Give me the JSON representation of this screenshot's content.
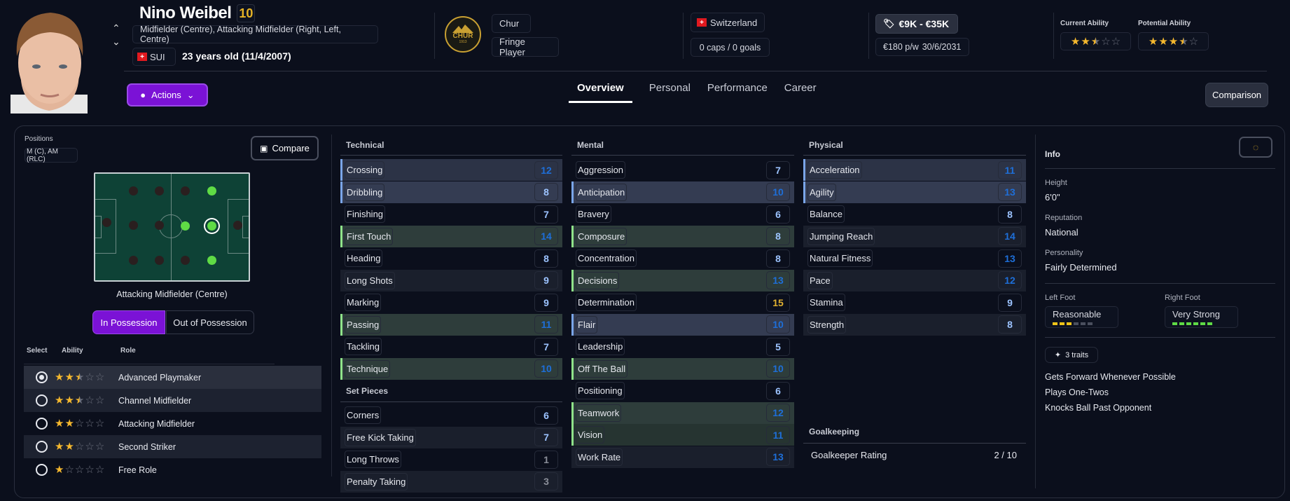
{
  "player": {
    "name": "Nino Weibel",
    "number": "10",
    "positions_full": "Midfielder (Centre), Attacking Midfielder (Right, Left, Centre)",
    "nationality_code": "SUI",
    "age": "23 years old (11/4/2007)"
  },
  "club": {
    "logo_text": "CHUR",
    "logo_year": "1913",
    "name": "Chur",
    "squad_status": "Fringe Player"
  },
  "international": {
    "country": "Switzerland",
    "caps": "0 caps / 0 goals"
  },
  "contract": {
    "value": "€9K - €35K",
    "wage": "€180 p/w",
    "expires": "30/6/2031"
  },
  "ability": {
    "current_label": "Current Ability",
    "current_stars": 2.5,
    "potential_label": "Potential Ability",
    "potential_stars": 3.5
  },
  "nav": {
    "actions": "Actions",
    "tabs": [
      "Overview",
      "Personal",
      "Performance",
      "Career"
    ],
    "active_tab": "Overview",
    "comparison": "Comparison"
  },
  "positions": {
    "label": "Positions",
    "short": "M (C), AM (RLC)",
    "compare": "Compare",
    "selected_position": "Attacking Midfielder (Centre)",
    "toggle": [
      "In Possession",
      "Out of Possession"
    ],
    "toggle_active": "In Possession",
    "columns": [
      "Select",
      "Ability",
      "Role"
    ],
    "roles": [
      {
        "name": "Advanced Playmaker",
        "stars": 2.5,
        "selected": true
      },
      {
        "name": "Channel Midfielder",
        "stars": 2.5,
        "selected": false
      },
      {
        "name": "Attacking Midfielder",
        "stars": 2,
        "selected": false
      },
      {
        "name": "Second Striker",
        "stars": 2,
        "selected": false
      },
      {
        "name": "Free Role",
        "stars": 1,
        "selected": false
      }
    ]
  },
  "technical": {
    "title": "Technical",
    "items": [
      {
        "name": "Crossing",
        "value": 12,
        "hl": "blue"
      },
      {
        "name": "Dribbling",
        "value": 8,
        "hl": "blue2"
      },
      {
        "name": "Finishing",
        "value": 7,
        "hl": ""
      },
      {
        "name": "First Touch",
        "value": 14,
        "hl": "green"
      },
      {
        "name": "Heading",
        "value": 8,
        "hl": ""
      },
      {
        "name": "Long Shots",
        "value": 9,
        "hl": "alt"
      },
      {
        "name": "Marking",
        "value": 9,
        "hl": ""
      },
      {
        "name": "Passing",
        "value": 11,
        "hl": "green"
      },
      {
        "name": "Tackling",
        "value": 7,
        "hl": ""
      },
      {
        "name": "Technique",
        "value": 10,
        "hl": "green"
      }
    ]
  },
  "set_pieces": {
    "title": "Set Pieces",
    "items": [
      {
        "name": "Corners",
        "value": 6,
        "hl": ""
      },
      {
        "name": "Free Kick Taking",
        "value": 7,
        "hl": "alt"
      },
      {
        "name": "Long Throws",
        "value": 1,
        "hl": ""
      },
      {
        "name": "Penalty Taking",
        "value": 3,
        "hl": "alt"
      }
    ]
  },
  "mental": {
    "title": "Mental",
    "items": [
      {
        "name": "Aggression",
        "value": 7,
        "hl": ""
      },
      {
        "name": "Anticipation",
        "value": 10,
        "hl": "blue2"
      },
      {
        "name": "Bravery",
        "value": 6,
        "hl": ""
      },
      {
        "name": "Composure",
        "value": 8,
        "hl": "green"
      },
      {
        "name": "Concentration",
        "value": 8,
        "hl": ""
      },
      {
        "name": "Decisions",
        "value": 13,
        "hl": "green"
      },
      {
        "name": "Determination",
        "value": 15,
        "hl": ""
      },
      {
        "name": "Flair",
        "value": 10,
        "hl": "blue2"
      },
      {
        "name": "Leadership",
        "value": 5,
        "hl": ""
      },
      {
        "name": "Off The Ball",
        "value": 10,
        "hl": "green"
      },
      {
        "name": "Positioning",
        "value": 6,
        "hl": ""
      },
      {
        "name": "Teamwork",
        "value": 12,
        "hl": "green"
      },
      {
        "name": "Vision",
        "value": 11,
        "hl": "green2"
      },
      {
        "name": "Work Rate",
        "value": 13,
        "hl": "alt"
      }
    ]
  },
  "physical": {
    "title": "Physical",
    "items": [
      {
        "name": "Acceleration",
        "value": 11,
        "hl": "blue"
      },
      {
        "name": "Agility",
        "value": 13,
        "hl": "blue2"
      },
      {
        "name": "Balance",
        "value": 8,
        "hl": ""
      },
      {
        "name": "Jumping Reach",
        "value": 14,
        "hl": "alt"
      },
      {
        "name": "Natural Fitness",
        "value": 13,
        "hl": ""
      },
      {
        "name": "Pace",
        "value": 12,
        "hl": "alt"
      },
      {
        "name": "Stamina",
        "value": 9,
        "hl": ""
      },
      {
        "name": "Strength",
        "value": 8,
        "hl": "alt"
      }
    ]
  },
  "goalkeeping": {
    "title": "Goalkeeping",
    "label": "Goalkeeper Rating",
    "value": "2 / 10"
  },
  "info": {
    "title": "Info",
    "height_label": "Height",
    "height": "6'0\"",
    "reputation_label": "Reputation",
    "reputation": "National",
    "personality_label": "Personality",
    "personality": "Fairly Determined",
    "left_foot_label": "Left Foot",
    "left_foot": "Reasonable",
    "left_foot_level": 3,
    "right_foot_label": "Right Foot",
    "right_foot": "Very Strong",
    "right_foot_level": 6,
    "traits_button": "3 traits",
    "traits": [
      "Gets Forward Whenever Possible",
      "Plays One-Twos",
      "Knocks Ball Past Opponent"
    ]
  },
  "colors": {
    "accent": "#7b12d6",
    "highlight_blue": "#7aa5e8",
    "highlight_green": "#8fe38a",
    "star": "#f5b82e",
    "value_high": "#1e6fd9",
    "value_low": "#9cc3ff",
    "value_top": "#e0b030"
  }
}
